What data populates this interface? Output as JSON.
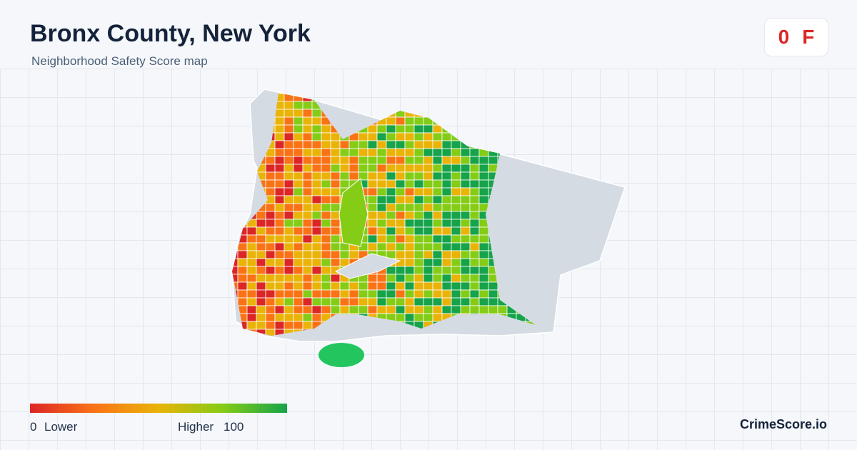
{
  "header": {
    "title": "Bronx County, New York",
    "subtitle": "Neighborhood Safety Score map"
  },
  "badge": {
    "score": "0",
    "grade": "F"
  },
  "legend": {
    "min": "0",
    "min_label": "Lower",
    "max_label": "Higher",
    "max": "100",
    "colors": [
      "#dc2626",
      "#f97316",
      "#eab308",
      "#84cc16",
      "#16a34a"
    ]
  },
  "brand": "CrimeScore.io"
}
